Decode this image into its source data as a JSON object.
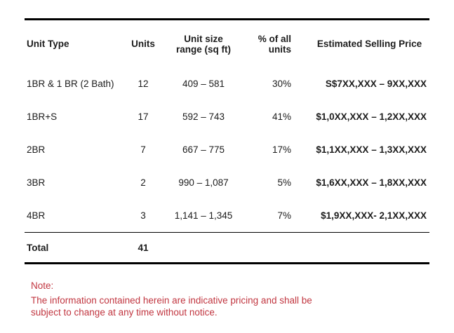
{
  "table": {
    "columns": {
      "unit_type": "Unit Type",
      "units": "Units",
      "size_line1": "Unit size",
      "size_line2": "range (sq ft)",
      "pct_line1": "% of all",
      "pct_line2": "units",
      "price": "Estimated Selling Price"
    },
    "rows": [
      {
        "unit_type": "1BR & 1 BR (2 Bath)",
        "units": "12",
        "size_range": "409 – 581",
        "pct": "30%",
        "price": "S$7XX,XXX – 9XX,XXX"
      },
      {
        "unit_type": "1BR+S",
        "units": "17",
        "size_range": "592 – 743",
        "pct": "41%",
        "price": "$1,0XX,XXX – 1,2XX,XXX"
      },
      {
        "unit_type": "2BR",
        "units": "7",
        "size_range": "667 – 775",
        "pct": "17%",
        "price": "$1,1XX,XXX – 1,3XX,XXX"
      },
      {
        "unit_type": "3BR",
        "units": "2",
        "size_range": "990 – 1,087",
        "pct": "5%",
        "price": "$1,6XX,XXX – 1,8XX,XXX"
      },
      {
        "unit_type": "4BR",
        "units": "3",
        "size_range": "1,141 – 1,345",
        "pct": "7%",
        "price": "$1,9XX,XXX- 2,1XX,XXX"
      }
    ],
    "total": {
      "label": "Total",
      "units": "41"
    }
  },
  "note": {
    "label": "Note:",
    "lines": [
      "The information contained herein are indicative pricing and shall be",
      "subject to change at any time without notice."
    ]
  },
  "colors": {
    "text": "#1c1c1c",
    "rule": "#000000",
    "note_red": "#c13640"
  }
}
